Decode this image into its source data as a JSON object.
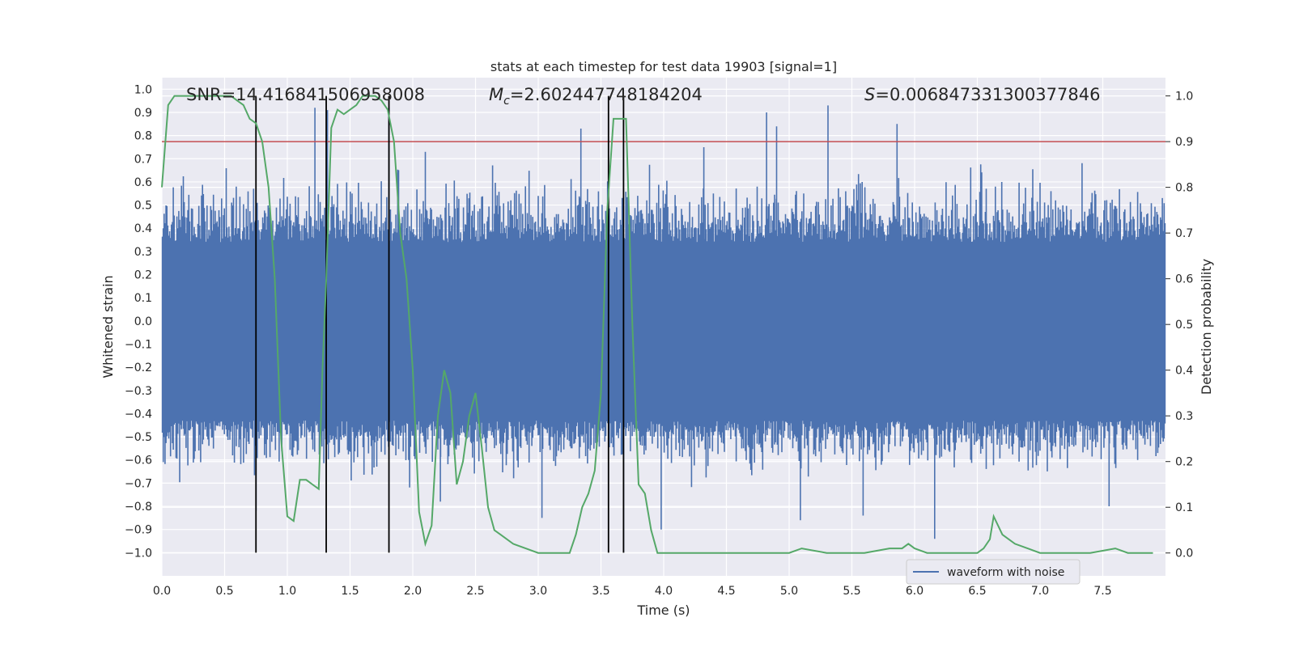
{
  "chart_data": {
    "type": "line",
    "title": "stats at each timestep for test data 19903 [signal=1]",
    "xlabel": "Time (s)",
    "ylabel": "Whitened strain",
    "y2label": "Detection probability",
    "xlim": [
      0.0,
      8.0
    ],
    "ylim": [
      -1.1,
      1.05
    ],
    "y2lim": [
      -0.05,
      1.04
    ],
    "x_ticks": [
      0.0,
      0.5,
      1.0,
      1.5,
      2.0,
      2.5,
      3.0,
      3.5,
      4.0,
      4.5,
      5.0,
      5.5,
      6.0,
      6.5,
      7.0,
      7.5
    ],
    "y_ticks": [
      -1.0,
      -0.9,
      -0.8,
      -0.7,
      -0.6,
      -0.5,
      -0.4,
      -0.3,
      -0.2,
      -0.1,
      0.0,
      0.1,
      0.2,
      0.3,
      0.4,
      0.5,
      0.6,
      0.7,
      0.8,
      0.9,
      1.0
    ],
    "y2_ticks": [
      0.0,
      0.1,
      0.2,
      0.3,
      0.4,
      0.5,
      0.6,
      0.7,
      0.8,
      0.9,
      1.0
    ],
    "annotations": {
      "snr": "SNR=14.416841506958008",
      "mc_symbol": "M",
      "mc_subscript": "c",
      "mc_value": "=2.602447748184204",
      "s_symbol": "S",
      "s_value": "=0.006847331300377846"
    },
    "threshold": {
      "value": 0.9,
      "axis": "y2",
      "color": "#c44e52"
    },
    "vertical_markers": [
      0.75,
      1.31,
      1.81,
      3.56,
      3.68
    ],
    "waveform": {
      "name": "waveform with noise",
      "color": "#4c72b0",
      "seed": 19903,
      "n_samples": 1100,
      "dense_band": [
        -0.43,
        0.34
      ],
      "spikes": [
        {
          "x": 1.22,
          "y": 0.92
        },
        {
          "x": 1.32,
          "y": 0.91
        },
        {
          "x": 1.81,
          "y": 0.92
        },
        {
          "x": 3.34,
          "y": 0.83
        },
        {
          "x": 4.82,
          "y": 0.9
        },
        {
          "x": 4.9,
          "y": 0.84
        },
        {
          "x": 5.31,
          "y": 0.93
        },
        {
          "x": 5.86,
          "y": 0.85
        },
        {
          "x": 4.32,
          "y": 0.75
        },
        {
          "x": 0.75,
          "y": -0.82
        },
        {
          "x": 3.68,
          "y": -1.0
        },
        {
          "x": 3.03,
          "y": -0.85
        },
        {
          "x": 3.98,
          "y": -0.9
        },
        {
          "x": 5.59,
          "y": -0.84
        },
        {
          "x": 6.16,
          "y": -0.94
        },
        {
          "x": 7.55,
          "y": -0.8
        },
        {
          "x": 5.09,
          "y": -0.86
        },
        {
          "x": 2.1,
          "y": 0.73
        },
        {
          "x": 2.22,
          "y": -0.78
        }
      ]
    },
    "probability": {
      "name": "detection probability",
      "color": "#55a868",
      "x": [
        0.0,
        0.05,
        0.1,
        0.15,
        0.2,
        0.3,
        0.4,
        0.5,
        0.55,
        0.6,
        0.65,
        0.7,
        0.75,
        0.8,
        0.85,
        0.9,
        0.95,
        1.0,
        1.05,
        1.1,
        1.15,
        1.2,
        1.25,
        1.28,
        1.31,
        1.35,
        1.4,
        1.45,
        1.5,
        1.55,
        1.6,
        1.65,
        1.7,
        1.75,
        1.8,
        1.85,
        1.9,
        1.95,
        2.0,
        2.05,
        2.1,
        2.15,
        2.2,
        2.25,
        2.3,
        2.35,
        2.4,
        2.45,
        2.5,
        2.55,
        2.6,
        2.65,
        2.7,
        2.8,
        2.9,
        3.0,
        3.1,
        3.2,
        3.25,
        3.3,
        3.35,
        3.4,
        3.45,
        3.5,
        3.55,
        3.6,
        3.65,
        3.7,
        3.75,
        3.8,
        3.85,
        3.9,
        3.95,
        4.0,
        4.05,
        4.1,
        4.5,
        5.0,
        5.1,
        5.3,
        5.6,
        5.8,
        5.9,
        5.95,
        6.0,
        6.1,
        6.5,
        6.55,
        6.6,
        6.63,
        6.7,
        6.8,
        7.0,
        7.4,
        7.6,
        7.7,
        7.9
      ],
      "values": [
        0.8,
        0.98,
        1.0,
        1.0,
        1.0,
        1.0,
        1.0,
        1.0,
        1.0,
        0.99,
        0.98,
        0.95,
        0.94,
        0.9,
        0.8,
        0.6,
        0.25,
        0.08,
        0.07,
        0.16,
        0.16,
        0.15,
        0.14,
        0.4,
        0.6,
        0.93,
        0.97,
        0.96,
        0.97,
        0.98,
        1.0,
        1.0,
        1.0,
        0.99,
        0.97,
        0.9,
        0.7,
        0.6,
        0.4,
        0.09,
        0.02,
        0.06,
        0.3,
        0.4,
        0.35,
        0.15,
        0.2,
        0.3,
        0.35,
        0.23,
        0.1,
        0.05,
        0.04,
        0.02,
        0.01,
        0.0,
        0.0,
        0.0,
        0.0,
        0.04,
        0.1,
        0.13,
        0.18,
        0.35,
        0.75,
        0.95,
        0.95,
        0.95,
        0.5,
        0.15,
        0.13,
        0.05,
        0.0,
        0.0,
        0.0,
        0.0,
        0.0,
        0.0,
        0.01,
        0.0,
        0.0,
        0.01,
        0.01,
        0.02,
        0.01,
        0.0,
        0.0,
        0.01,
        0.03,
        0.08,
        0.04,
        0.02,
        0.0,
        0.0,
        0.01,
        0.0,
        0.0
      ]
    },
    "legend": {
      "location": "lower-right",
      "entries": [
        "waveform with noise"
      ]
    }
  }
}
